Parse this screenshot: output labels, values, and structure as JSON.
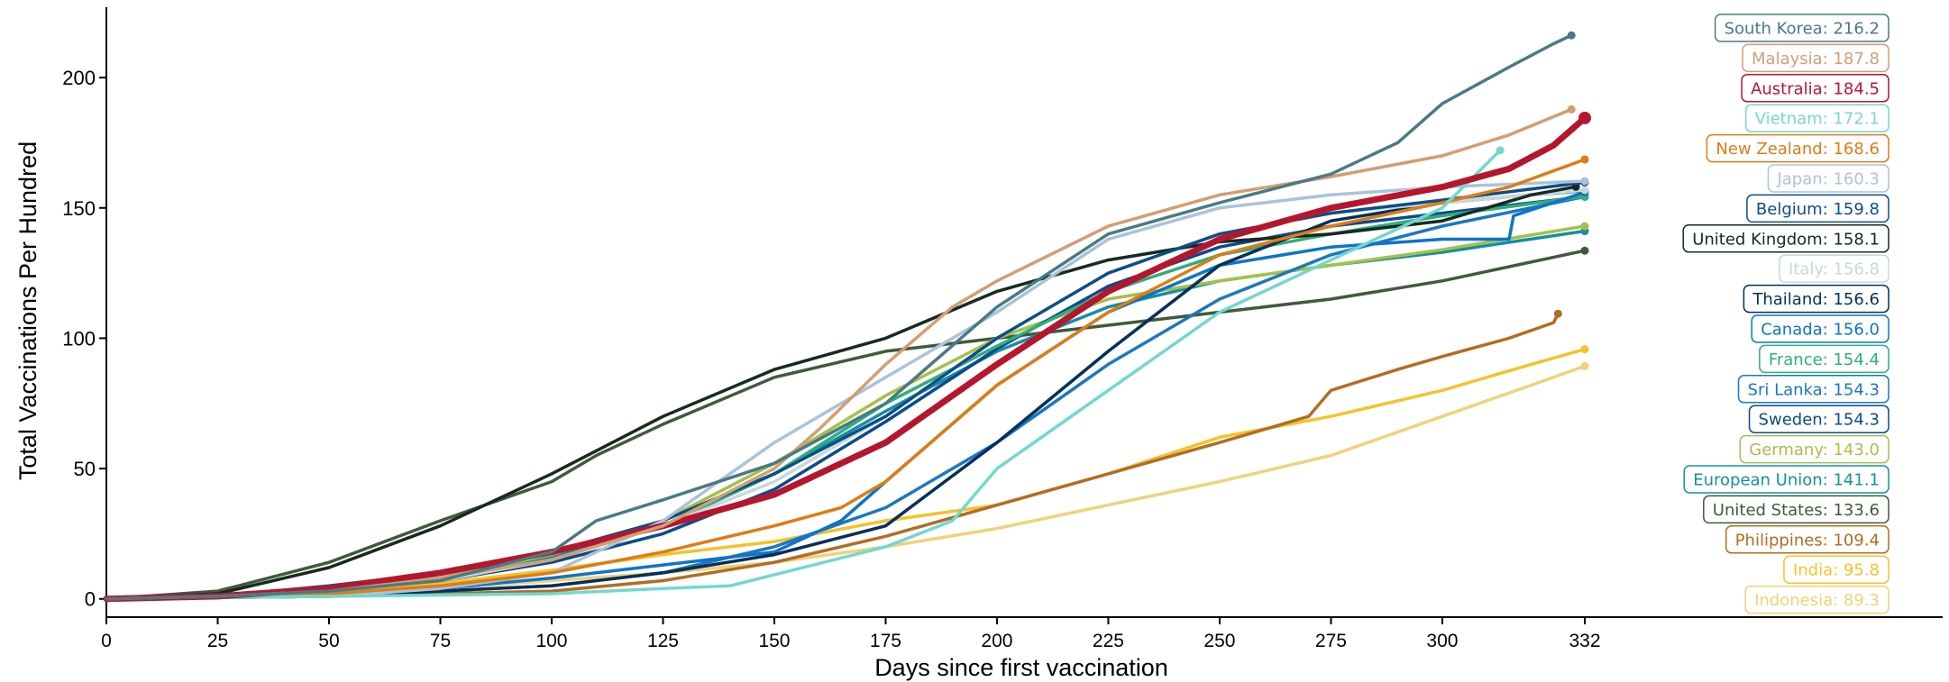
{
  "chart_data": {
    "type": "line",
    "title": "",
    "xlabel": "Days since first vaccination",
    "ylabel": "Total Vaccinations Per Hundred",
    "xlim": [
      0,
      332
    ],
    "ylim": [
      -7,
      227
    ],
    "xticks": [
      0,
      25,
      50,
      75,
      100,
      125,
      150,
      175,
      200,
      225,
      250,
      275,
      300,
      332
    ],
    "xtick_labels": [
      "0",
      "25",
      "50",
      "75",
      "100",
      "125",
      "150",
      "175",
      "200",
      "225",
      "250",
      "275",
      "300",
      "332"
    ],
    "yticks": [
      0,
      50,
      100,
      150,
      200
    ],
    "ytick_labels": [
      "0",
      "50",
      "100",
      "150",
      "200"
    ],
    "grid": false,
    "legend_placement": "right",
    "series": [
      {
        "name": "South Korea",
        "final": 216.2,
        "label": "South Korea: 216.2",
        "color": "#4a7a84",
        "x": [
          0,
          25,
          50,
          75,
          100,
          110,
          125,
          150,
          175,
          200,
          225,
          250,
          275,
          290,
          300,
          315,
          325,
          329
        ],
        "y": [
          0,
          1,
          3,
          7,
          18,
          30,
          38,
          52,
          75,
          112,
          140,
          152,
          163,
          175,
          190,
          204,
          213,
          216.2
        ]
      },
      {
        "name": "Malaysia",
        "final": 187.8,
        "label": "Malaysia: 187.8",
        "color": "#d29e73",
        "x": [
          0,
          25,
          50,
          75,
          100,
          125,
          150,
          160,
          175,
          190,
          200,
          225,
          250,
          275,
          300,
          315,
          329
        ],
        "y": [
          0,
          1,
          3,
          8,
          15,
          28,
          50,
          65,
          90,
          112,
          122,
          143,
          155,
          162,
          170,
          178,
          187.8
        ]
      },
      {
        "name": "Australia",
        "final": 184.5,
        "label": "Australia: 184.5",
        "color": "#b5162e",
        "x": [
          0,
          25,
          50,
          75,
          100,
          125,
          150,
          175,
          200,
          225,
          250,
          275,
          300,
          315,
          325,
          332
        ],
        "y": [
          0,
          1,
          4,
          10,
          18,
          28,
          40,
          60,
          90,
          118,
          138,
          150,
          158,
          165,
          174,
          184.5
        ]
      },
      {
        "name": "Vietnam",
        "final": 172.1,
        "label": "Vietnam: 172.1",
        "color": "#72d8cf",
        "x": [
          0,
          50,
          100,
          125,
          140,
          175,
          190,
          200,
          225,
          250,
          275,
          300,
          313
        ],
        "y": [
          0,
          1,
          2,
          4,
          5,
          20,
          30,
          50,
          80,
          110,
          130,
          150,
          172.1
        ]
      },
      {
        "name": "New Zealand",
        "final": 168.6,
        "label": "New Zealand: 168.6",
        "color": "#e07b14",
        "x": [
          0,
          25,
          50,
          75,
          100,
          125,
          150,
          165,
          175,
          200,
          225,
          250,
          275,
          300,
          315,
          332
        ],
        "y": [
          0,
          1,
          2,
          5,
          10,
          18,
          28,
          35,
          45,
          82,
          110,
          132,
          143,
          152,
          158,
          168.6
        ]
      },
      {
        "name": "Japan",
        "final": 160.3,
        "label": "Japan: 160.3",
        "color": "#a9c3da",
        "x": [
          0,
          50,
          75,
          100,
          125,
          150,
          175,
          200,
          225,
          250,
          275,
          300,
          332
        ],
        "y": [
          0,
          1,
          4,
          10,
          30,
          60,
          85,
          110,
          138,
          150,
          155,
          158,
          160.3
        ]
      },
      {
        "name": "Belgium",
        "final": 159.8,
        "label": "Belgium: 159.8",
        "color": "#0d4e86",
        "x": [
          0,
          25,
          50,
          75,
          100,
          125,
          150,
          175,
          200,
          225,
          250,
          275,
          300,
          332
        ],
        "y": [
          0,
          1,
          5,
          10,
          18,
          30,
          48,
          70,
          100,
          125,
          140,
          148,
          153,
          159.8
        ]
      },
      {
        "name": "United Kingdom",
        "final": 158.1,
        "label": "United Kingdom: 158.1",
        "color": "#172a22",
        "x": [
          0,
          25,
          50,
          75,
          100,
          125,
          150,
          175,
          200,
          225,
          250,
          275,
          300,
          320,
          330
        ],
        "y": [
          0,
          2,
          12,
          28,
          48,
          70,
          88,
          100,
          118,
          130,
          137,
          140,
          145,
          155,
          158.1
        ]
      },
      {
        "name": "Italy",
        "final": 156.8,
        "label": "Italy: 156.8",
        "color": "#c5d9dd",
        "x": [
          0,
          25,
          50,
          75,
          100,
          125,
          150,
          175,
          200,
          225,
          250,
          275,
          300,
          332
        ],
        "y": [
          0,
          1,
          3,
          7,
          15,
          28,
          45,
          70,
          100,
          125,
          140,
          148,
          152,
          156.8
        ]
      },
      {
        "name": "Thailand",
        "final": 156.6,
        "label": "Thailand: 156.6",
        "color": "#06305a",
        "x": [
          0,
          50,
          75,
          100,
          125,
          150,
          175,
          200,
          225,
          250,
          275,
          300,
          320,
          332
        ],
        "y": [
          0,
          1,
          3,
          5,
          10,
          17,
          28,
          60,
          95,
          128,
          145,
          152,
          155,
          156.6
        ]
      },
      {
        "name": "Canada",
        "final": 156.0,
        "label": "Canada: 156.0",
        "color": "#0d74c8",
        "x": [
          0,
          25,
          50,
          75,
          100,
          125,
          150,
          165,
          175,
          200,
          225,
          250,
          275,
          300,
          315,
          316,
          332
        ],
        "y": [
          0,
          1,
          2,
          4,
          8,
          13,
          18,
          30,
          45,
          82,
          110,
          128,
          135,
          138,
          138,
          147,
          156.0
        ]
      },
      {
        "name": "France",
        "final": 154.4,
        "label": "France: 154.4",
        "color": "#2fae7d",
        "x": [
          0,
          25,
          50,
          75,
          100,
          125,
          150,
          175,
          200,
          225,
          250,
          275,
          300,
          332
        ],
        "y": [
          0,
          1,
          3,
          8,
          15,
          28,
          48,
          75,
          97,
          118,
          132,
          140,
          147,
          154.4
        ]
      },
      {
        "name": "Sri Lanka",
        "final": 154.3,
        "label": "Sri Lanka: 154.3",
        "color": "#1a78c2",
        "x": [
          0,
          50,
          100,
          125,
          150,
          175,
          200,
          225,
          250,
          275,
          300,
          332
        ],
        "y": [
          0,
          1,
          5,
          10,
          20,
          35,
          60,
          90,
          115,
          132,
          143,
          154.3
        ]
      },
      {
        "name": "Sweden",
        "final": 154.3,
        "label": "Sweden: 154.3",
        "color": "#0b4a8c",
        "x": [
          0,
          25,
          50,
          75,
          100,
          125,
          150,
          175,
          200,
          225,
          250,
          275,
          300,
          332
        ],
        "y": [
          0,
          1,
          3,
          7,
          14,
          25,
          42,
          68,
          96,
          120,
          135,
          143,
          148,
          154.3
        ]
      },
      {
        "name": "Germany",
        "final": 143.0,
        "label": "Germany: 143.0",
        "color": "#a6c04a",
        "x": [
          0,
          25,
          50,
          75,
          100,
          125,
          150,
          175,
          200,
          225,
          250,
          275,
          300,
          332
        ],
        "y": [
          0,
          1,
          3,
          8,
          17,
          30,
          52,
          78,
          100,
          115,
          122,
          128,
          134,
          143.0
        ]
      },
      {
        "name": "European Union",
        "final": 141.1,
        "label": "European Union: 141.1",
        "color": "#148fa3",
        "x": [
          0,
          25,
          50,
          75,
          100,
          125,
          150,
          175,
          200,
          225,
          250,
          275,
          300,
          332
        ],
        "y": [
          0,
          1,
          3,
          8,
          16,
          28,
          48,
          72,
          95,
          112,
          122,
          128,
          133,
          141.1
        ]
      },
      {
        "name": "United States",
        "final": 133.6,
        "label": "United States: 133.6",
        "color": "#3f5a3c",
        "x": [
          0,
          25,
          50,
          75,
          100,
          110,
          125,
          150,
          175,
          200,
          225,
          250,
          275,
          300,
          332
        ],
        "y": [
          0,
          3,
          14,
          30,
          45,
          55,
          67,
          85,
          95,
          100,
          105,
          110,
          115,
          122,
          133.6
        ]
      },
      {
        "name": "Philippines",
        "final": 109.4,
        "label": "Philippines: 109.4",
        "color": "#b36d22",
        "x": [
          0,
          50,
          100,
          125,
          150,
          175,
          200,
          225,
          250,
          270,
          275,
          290,
          300,
          315,
          325,
          326
        ],
        "y": [
          0,
          1,
          3,
          7,
          14,
          24,
          36,
          48,
          60,
          70,
          80,
          88,
          93,
          100,
          106,
          109.4
        ]
      },
      {
        "name": "India",
        "final": 95.8,
        "label": "India: 95.8",
        "color": "#f6c22b",
        "x": [
          0,
          25,
          50,
          75,
          100,
          125,
          150,
          175,
          200,
          225,
          250,
          275,
          300,
          320,
          332
        ],
        "y": [
          0,
          1,
          3,
          6,
          11,
          17,
          22,
          30,
          36,
          48,
          62,
          70,
          80,
          90,
          95.8
        ]
      },
      {
        "name": "Indonesia",
        "final": 89.3,
        "label": "Indonesia: 89.3",
        "color": "#f0d27a",
        "x": [
          0,
          25,
          50,
          75,
          100,
          125,
          150,
          175,
          200,
          225,
          250,
          275,
          300,
          320,
          332
        ],
        "y": [
          0,
          1,
          2,
          4,
          7,
          10,
          14,
          20,
          27,
          36,
          45,
          55,
          70,
          82,
          89.3
        ]
      }
    ]
  }
}
